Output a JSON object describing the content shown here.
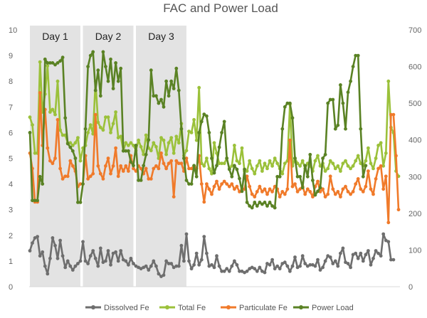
{
  "chart_data": {
    "type": "line",
    "title": "FAC and Power Load",
    "xlabel": "",
    "ylabel": "",
    "y_left": {
      "ylim": [
        0,
        10
      ],
      "ticks": [
        "0",
        "1",
        "2",
        "3",
        "4",
        "5",
        "6",
        "7",
        "8",
        "9",
        "10"
      ]
    },
    "y_right": {
      "ylim": [
        0,
        700
      ],
      "ticks": [
        "0",
        "100",
        "200",
        "300",
        "400",
        "500",
        "600",
        "700"
      ]
    },
    "grid": false,
    "legend_position": "bottom",
    "day_bands": [
      {
        "label": "Day 1",
        "start": 0,
        "end": 20
      },
      {
        "label": "Day 2",
        "start": 21,
        "end": 41
      },
      {
        "label": "Day 3",
        "start": 42,
        "end": 62
      }
    ],
    "series": [
      {
        "name": "Dissolved Fe",
        "color": "#6e6e6e",
        "axis": "left",
        "values": [
          1.4,
          1.7,
          1.9,
          1.95,
          1.2,
          1.35,
          0.8,
          0.5,
          1.1,
          1.9,
          1.6,
          1.1,
          1.8,
          1.2,
          0.75,
          1.0,
          0.8,
          0.65,
          0.8,
          0.9,
          1.0,
          1.75,
          1.0,
          0.9,
          1.2,
          1.4,
          1.1,
          0.8,
          1.5,
          0.95,
          1.0,
          1.4,
          0.85,
          1.3,
          1.35,
          1.0,
          1.4,
          1.05,
          1.0,
          0.85,
          1.1,
          0.9,
          0.8,
          0.75,
          0.7,
          0.75,
          0.8,
          0.65,
          0.8,
          1.0,
          0.8,
          0.5,
          0.4,
          0.45,
          1.0,
          0.9,
          0.9,
          0.75,
          0.8,
          0.8,
          1.6,
          1.0,
          2.05,
          1.0,
          0.7,
          0.85,
          1.3,
          0.85,
          1.05,
          1.95,
          1.3,
          0.8,
          0.85,
          0.75,
          1.2,
          0.8,
          0.6,
          0.6,
          0.7,
          0.6,
          0.8,
          1.0,
          0.85,
          0.6,
          0.6,
          0.55,
          0.6,
          0.7,
          0.75,
          0.7,
          0.6,
          0.75,
          0.6,
          0.55,
          0.9,
          0.85,
          1.05,
          0.7,
          0.8,
          0.7,
          0.9,
          0.95,
          0.8,
          0.6,
          0.8,
          1.15,
          0.75,
          0.8,
          1.2,
          0.9,
          0.8,
          0.85,
          0.85,
          0.8,
          1.05,
          0.65,
          0.75,
          1.0,
          1.2,
          1.15,
          0.9,
          1.0,
          0.8,
          1.3,
          1.5,
          0.95,
          0.9,
          0.75,
          1.25,
          1.3,
          1.1,
          1.3,
          1.0,
          1.25,
          1.4,
          0.85,
          1.1,
          1.4,
          1.3,
          1.2,
          2.05,
          1.8,
          1.75,
          1.05,
          1.05
        ]
      },
      {
        "name": "Total Fe",
        "color": "#9bc13a",
        "axis": "left",
        "values": [
          6.6,
          6.3,
          5.2,
          5.2,
          8.75,
          6.8,
          7.5,
          8.6,
          6.8,
          6.9,
          6.7,
          8.0,
          6.1,
          5.9,
          5.9,
          5.6,
          5.6,
          5.5,
          5.6,
          5.8,
          4.9,
          5.4,
          5.5,
          6.0,
          6.3,
          5.95,
          8.0,
          6.4,
          6.2,
          6.1,
          6.6,
          6.6,
          6.0,
          6.35,
          6.8,
          5.8,
          5.85,
          5.3,
          5.6,
          5.5,
          5.6,
          5.5,
          5.3,
          5.7,
          5.45,
          5.15,
          5.9,
          5.4,
          5.3,
          5.6,
          5.45,
          5.0,
          5.8,
          5.7,
          5.15,
          5.6,
          5.8,
          5.2,
          5.85,
          5.6,
          6.35,
          5.1,
          5.3,
          6.05,
          6.0,
          6.5,
          5.7,
          7.75,
          4.8,
          4.7,
          5.0,
          4.6,
          4.4,
          5.6,
          5.2,
          4.8,
          4.8,
          4.8,
          5.0,
          4.6,
          4.7,
          5.5,
          4.9,
          4.8,
          5.4,
          4.5,
          4.5,
          4.9,
          4.6,
          4.4,
          4.7,
          4.9,
          4.5,
          4.8,
          4.6,
          4.9,
          4.7,
          5.0,
          4.8,
          4.6,
          4.4,
          4.8,
          4.9,
          7.1,
          4.7,
          5.0,
          4.8,
          4.7,
          4.9,
          4.6,
          4.8,
          4.7,
          4.5,
          4.9,
          5.1,
          4.7,
          4.8,
          4.5,
          4.6,
          4.9,
          4.8,
          4.6,
          4.7,
          4.5,
          4.8,
          4.9,
          4.7,
          4.6,
          4.7,
          4.9,
          5.1,
          4.8,
          4.7,
          4.9,
          5.4,
          4.8,
          4.6,
          5.0,
          5.5,
          5.6,
          4.7,
          5.2,
          8.0,
          6.2,
          6.0,
          4.5,
          4.3
        ]
      },
      {
        "name": "Particulate Fe",
        "color": "#f07a2a",
        "axis": "left",
        "values": [
          5.2,
          4.6,
          3.3,
          3.3,
          7.55,
          5.5,
          6.9,
          5.4,
          4.9,
          4.8,
          5.0,
          6.5,
          4.6,
          4.2,
          4.3,
          4.3,
          4.9,
          4.7,
          4.5,
          3.9,
          4.0,
          4.0,
          5.1,
          4.2,
          4.3,
          4.4,
          6.7,
          4.7,
          4.4,
          4.2,
          4.7,
          5.0,
          4.4,
          4.7,
          5.4,
          4.3,
          4.7,
          4.5,
          4.7,
          4.5,
          5.1,
          4.6,
          4.5,
          4.7,
          4.6,
          4.4,
          4.6,
          4.2,
          4.2,
          4.6,
          4.7,
          4.6,
          5.2,
          4.8,
          4.6,
          4.8,
          4.9,
          3.5,
          4.9,
          4.8,
          4.8,
          4.5,
          5.0,
          4.6,
          4.6,
          4.7,
          4.6,
          5.1,
          4.0,
          3.3,
          4.0,
          3.8,
          3.6,
          3.9,
          4.1,
          3.8,
          4.0,
          4.1,
          4.0,
          3.9,
          4.0,
          3.8,
          3.9,
          3.7,
          3.8,
          3.8,
          4.3,
          3.9,
          3.6,
          3.5,
          3.7,
          3.9,
          3.7,
          3.8,
          3.6,
          3.8,
          3.7,
          3.9,
          3.8,
          3.5,
          3.7,
          3.6,
          3.8,
          5.7,
          3.9,
          4.0,
          3.7,
          3.8,
          3.9,
          3.6,
          3.8,
          3.7,
          3.5,
          3.9,
          4.1,
          3.7,
          3.8,
          3.5,
          3.6,
          4.3,
          3.8,
          3.6,
          3.7,
          3.5,
          3.8,
          3.9,
          3.7,
          3.6,
          3.7,
          4.0,
          4.2,
          3.8,
          3.7,
          3.9,
          4.5,
          3.8,
          3.6,
          4.2,
          4.6,
          4.7,
          3.8,
          4.3,
          2.5,
          6.7,
          6.7,
          5.1,
          3.0
        ]
      },
      {
        "name": "Power Load",
        "color": "#5a8224",
        "axis": "right",
        "values": [
          420,
          235,
          235,
          235,
          300,
          280,
          620,
          610,
          610,
          610,
          605,
          610,
          615,
          625,
          460,
          390,
          380,
          370,
          350,
          230,
          230,
          280,
          430,
          600,
          630,
          640,
          535,
          590,
          520,
          640,
          600,
          560,
          620,
          540,
          610,
          560,
          595,
          370,
          370,
          370,
          340,
          330,
          385,
          290,
          290,
          330,
          360,
          400,
          590,
          520,
          520,
          500,
          510,
          490,
          560,
          520,
          560,
          540,
          595,
          535,
          430,
          350,
          290,
          280,
          280,
          330,
          300,
          420,
          450,
          470,
          465,
          420,
          350,
          310,
          330,
          380,
          420,
          450,
          350,
          320,
          300,
          330,
          320,
          295,
          260,
          320,
          230,
          220,
          215,
          230,
          220,
          230,
          225,
          230,
          220,
          230,
          220,
          215,
          300,
          300,
          430,
          490,
          500,
          500,
          460,
          350,
          300,
          300,
          270,
          330,
          300,
          360,
          290,
          250,
          260,
          270,
          350,
          360,
          500,
          510,
          510,
          430,
          440,
          550,
          500,
          430,
          530,
          560,
          600,
          630,
          630,
          430,
          300,
          330
        ]
      }
    ]
  }
}
